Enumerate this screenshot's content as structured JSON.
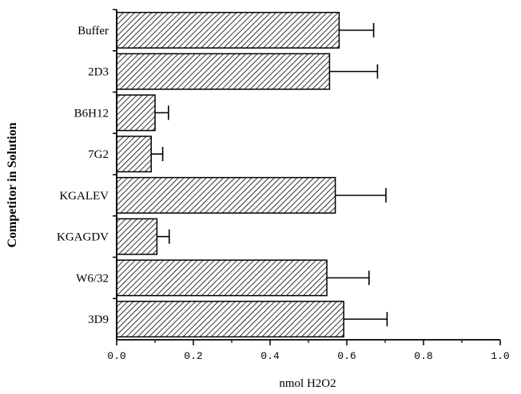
{
  "chart_data": {
    "type": "bar",
    "orientation": "horizontal",
    "categories": [
      "Buffer",
      "2D3",
      "B6H12",
      "7G2",
      "KGALEV",
      "KGAGDV",
      "W6/32",
      "3D9"
    ],
    "values": [
      0.58,
      0.555,
      0.1,
      0.09,
      0.57,
      0.105,
      0.548,
      0.592
    ],
    "error_upper": [
      0.67,
      0.68,
      0.135,
      0.12,
      0.702,
      0.137,
      0.658,
      0.705
    ],
    "xlabel": "nmol H2O2",
    "ylabel": "Competitor  in  Solution",
    "xlim": [
      0.0,
      1.0
    ],
    "xticks": [
      "0.0",
      "0.2",
      "0.4",
      "0.6",
      "0.8",
      "1.0"
    ],
    "grid": false,
    "bar_fill": "hatched"
  }
}
